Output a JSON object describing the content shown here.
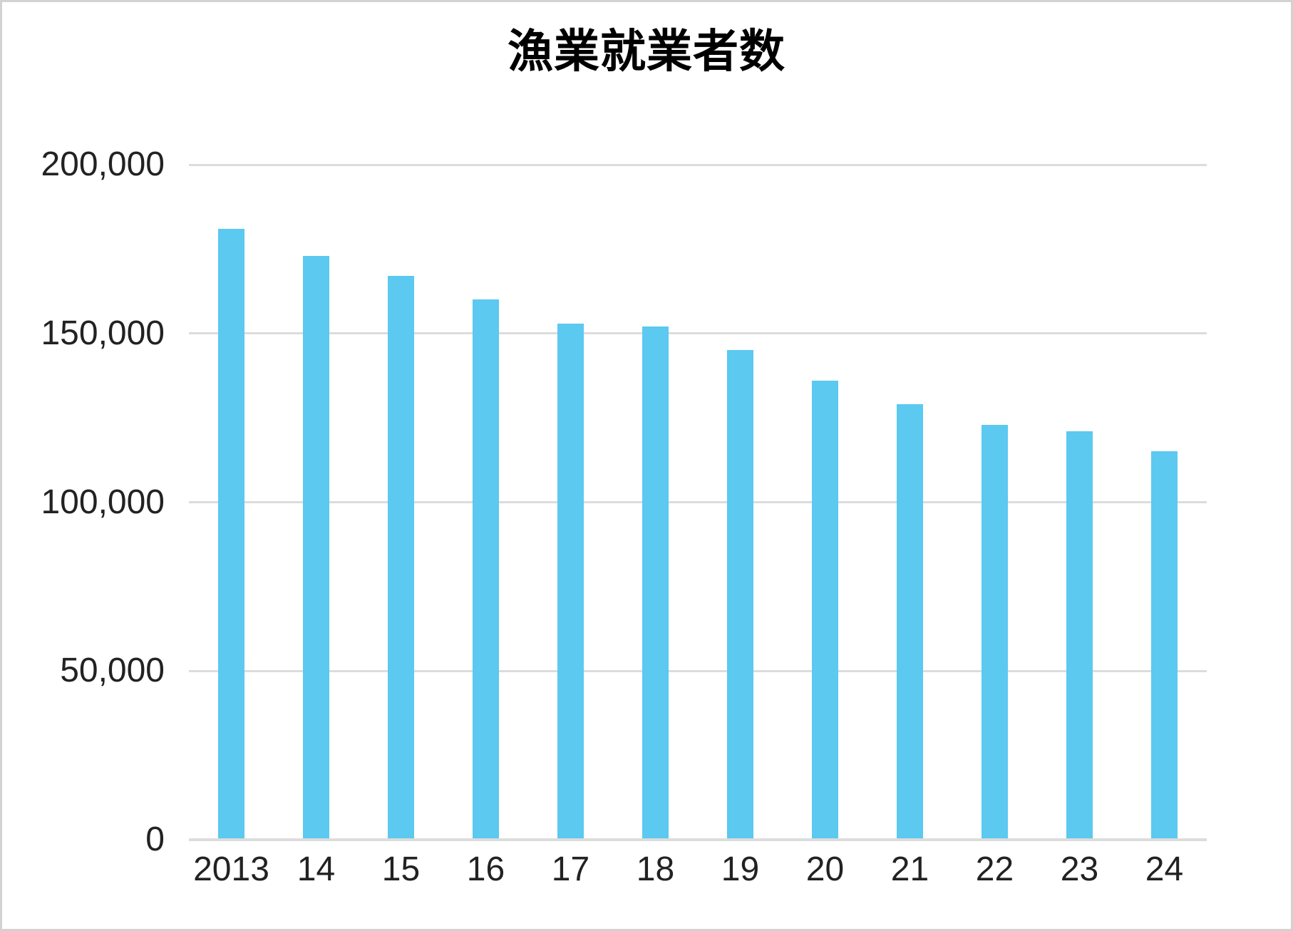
{
  "figure": {
    "background_color": "#ffffff",
    "border_color": "#d2d2d2"
  },
  "chart_data": {
    "type": "bar",
    "title": "漁業就業者数",
    "categories": [
      "2013",
      "14",
      "15",
      "16",
      "17",
      "18",
      "19",
      "20",
      "21",
      "22",
      "23",
      "24"
    ],
    "values": [
      181000,
      173000,
      167000,
      160000,
      153000,
      152000,
      145000,
      136000,
      129000,
      123000,
      121000,
      115000
    ],
    "xlabel": "",
    "ylabel": "",
    "ylim": [
      0,
      200000
    ],
    "yticks": [
      {
        "value": 0,
        "label": "0"
      },
      {
        "value": 50000,
        "label": "50,000"
      },
      {
        "value": 100000,
        "label": "100,000"
      },
      {
        "value": 150000,
        "label": "150,000"
      },
      {
        "value": 200000,
        "label": "200,000"
      }
    ],
    "grid": "horizontal-only",
    "legend": "none",
    "bar_color": "#5bc9f0",
    "gridline_color": "#dcdcdc",
    "text_color": "#222222",
    "title_color": "#000000"
  }
}
